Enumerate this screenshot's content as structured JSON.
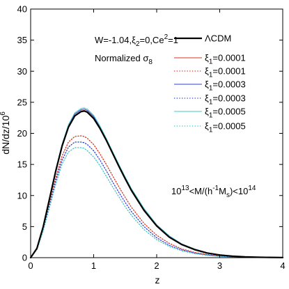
{
  "chart_data": {
    "type": "line",
    "xlabel": "z",
    "ylabel": "dN/dz/10",
    "ylabel_sup": "6",
    "xlim": [
      0,
      4
    ],
    "ylim": [
      0,
      40
    ],
    "xticks": [
      "0",
      "1",
      "2",
      "3",
      "4"
    ],
    "yticks": [
      "0",
      "5",
      "10",
      "15",
      "20",
      "25",
      "30",
      "35",
      "40"
    ],
    "grid": false,
    "legend_position": "top-right",
    "annotations": {
      "params_text": "W=-1.04,ξ",
      "params_sub": "2",
      "params_rest": "=0,Ce",
      "params_sup": "2",
      "params_end": "=1",
      "normalized_text": "Normalized σ",
      "normalized_sub": "8",
      "mass_range_a": "10",
      "mass_range_a_sup": "13",
      "mass_range_b": "<M/(h",
      "mass_range_b_sup": "-1",
      "mass_range_c": "M",
      "mass_range_c_sub": "s",
      "mass_range_d": ")<10",
      "mass_range_d_sup": "14"
    },
    "series": [
      {
        "name": "ΛCDM",
        "label_main": "ΛCDM",
        "label_sub": "",
        "label_value": "",
        "color": "#000000",
        "style": "solid",
        "width": 2.2,
        "x": [
          0,
          0.1,
          0.2,
          0.3,
          0.4,
          0.5,
          0.6,
          0.7,
          0.8,
          0.85,
          0.9,
          1.0,
          1.1,
          1.2,
          1.3,
          1.4,
          1.5,
          1.6,
          1.8,
          2.0,
          2.2,
          2.4,
          2.6,
          2.8,
          3.0,
          3.2,
          3.4,
          3.6,
          3.8,
          4.0
        ],
        "y": [
          0,
          1.5,
          5.0,
          9.5,
          14.0,
          18.0,
          21.0,
          22.8,
          23.5,
          23.6,
          23.4,
          22.4,
          20.8,
          18.9,
          16.8,
          14.7,
          12.7,
          10.8,
          7.6,
          5.1,
          3.3,
          2.1,
          1.3,
          0.75,
          0.43,
          0.24,
          0.13,
          0.07,
          0.04,
          0.02
        ]
      },
      {
        "name": "ξ1=0.0001 solid",
        "label_main": "ξ",
        "label_sub": "1",
        "label_value": "=0.0001",
        "color": "#e0301e",
        "style": "solid",
        "width": 1,
        "x": [
          0,
          0.1,
          0.2,
          0.3,
          0.4,
          0.5,
          0.6,
          0.7,
          0.8,
          0.85,
          0.9,
          1.0,
          1.1,
          1.2,
          1.3,
          1.4,
          1.5,
          1.6,
          1.8,
          2.0,
          2.2,
          2.4,
          2.6,
          2.8,
          3.0,
          3.2,
          3.4,
          3.6,
          3.8,
          4.0
        ],
        "y": [
          0,
          1.5,
          5.0,
          9.6,
          14.1,
          18.1,
          21.1,
          22.9,
          23.6,
          23.7,
          23.5,
          22.5,
          20.9,
          19.0,
          16.9,
          14.8,
          12.8,
          10.9,
          7.7,
          5.2,
          3.4,
          2.2,
          1.4,
          0.8,
          0.45,
          0.25,
          0.14,
          0.08,
          0.04,
          0.02
        ]
      },
      {
        "name": "ξ1=0.0001 dotted",
        "label_main": "ξ",
        "label_sub": "1",
        "label_value": "=0.0001",
        "color": "#e0301e",
        "style": "dotted",
        "width": 1.3,
        "x": [
          0,
          0.1,
          0.2,
          0.3,
          0.4,
          0.5,
          0.6,
          0.7,
          0.8,
          0.85,
          0.9,
          1.0,
          1.1,
          1.2,
          1.3,
          1.4,
          1.5,
          1.6,
          1.8,
          2.0,
          2.2,
          2.4,
          2.6,
          2.8,
          3.0,
          3.2,
          3.4,
          3.6,
          3.8,
          4.0
        ],
        "y": [
          0,
          1.4,
          4.6,
          8.7,
          12.9,
          16.4,
          18.6,
          19.5,
          19.6,
          19.5,
          19.2,
          18.2,
          16.7,
          15.0,
          13.2,
          11.4,
          9.7,
          8.1,
          5.5,
          3.6,
          2.3,
          1.4,
          0.85,
          0.5,
          0.28,
          0.15,
          0.08,
          0.04,
          0.02,
          0.01
        ]
      },
      {
        "name": "ξ1=0.0003 solid",
        "label_main": "ξ",
        "label_sub": "1",
        "label_value": "=0.0003",
        "color": "#2f3fd0",
        "style": "solid",
        "width": 1,
        "x": [
          0,
          0.1,
          0.2,
          0.3,
          0.4,
          0.5,
          0.6,
          0.7,
          0.8,
          0.85,
          0.9,
          1.0,
          1.1,
          1.2,
          1.3,
          1.4,
          1.5,
          1.6,
          1.8,
          2.0,
          2.2,
          2.4,
          2.6,
          2.8,
          3.0,
          3.2,
          3.4,
          3.6,
          3.8,
          4.0
        ],
        "y": [
          0,
          1.5,
          5.0,
          9.6,
          14.2,
          18.2,
          21.3,
          23.1,
          23.8,
          23.9,
          23.7,
          22.7,
          21.0,
          19.1,
          17.0,
          14.9,
          12.9,
          11.0,
          7.8,
          5.3,
          3.5,
          2.2,
          1.4,
          0.8,
          0.45,
          0.25,
          0.14,
          0.08,
          0.04,
          0.02
        ]
      },
      {
        "name": "ξ1=0.0003 dotted",
        "label_main": "ξ",
        "label_sub": "1",
        "label_value": "=0.0003",
        "color": "#2f3fd0",
        "style": "dotted",
        "width": 1.3,
        "x": [
          0,
          0.1,
          0.2,
          0.3,
          0.4,
          0.5,
          0.6,
          0.7,
          0.8,
          0.85,
          0.9,
          1.0,
          1.1,
          1.2,
          1.3,
          1.4,
          1.5,
          1.6,
          1.8,
          2.0,
          2.2,
          2.4,
          2.6,
          2.8,
          3.0,
          3.2,
          3.4,
          3.6,
          3.8,
          4.0
        ],
        "y": [
          0,
          1.4,
          4.5,
          8.4,
          12.4,
          15.7,
          17.8,
          18.6,
          18.6,
          18.5,
          18.2,
          17.2,
          15.7,
          14.0,
          12.2,
          10.5,
          8.9,
          7.4,
          5.0,
          3.2,
          2.0,
          1.25,
          0.75,
          0.43,
          0.24,
          0.13,
          0.07,
          0.04,
          0.02,
          0.01
        ]
      },
      {
        "name": "ξ1=0.0005 solid",
        "label_main": "ξ",
        "label_sub": "1",
        "label_value": "=0.0005",
        "color": "#40c8c8",
        "style": "solid",
        "width": 1,
        "x": [
          0,
          0.1,
          0.2,
          0.3,
          0.4,
          0.5,
          0.6,
          0.7,
          0.8,
          0.85,
          0.9,
          1.0,
          1.1,
          1.2,
          1.3,
          1.4,
          1.5,
          1.6,
          1.8,
          2.0,
          2.2,
          2.4,
          2.6,
          2.8,
          3.0,
          3.2,
          3.4,
          3.6,
          3.8,
          4.0
        ],
        "y": [
          0,
          1.5,
          5.1,
          9.7,
          14.3,
          18.3,
          21.4,
          23.3,
          24.0,
          24.1,
          23.9,
          22.9,
          21.2,
          19.2,
          17.1,
          15.0,
          13.0,
          11.1,
          7.9,
          5.3,
          3.5,
          2.2,
          1.4,
          0.8,
          0.45,
          0.25,
          0.14,
          0.08,
          0.04,
          0.02
        ]
      },
      {
        "name": "ξ1=0.0005 dotted",
        "label_main": "ξ",
        "label_sub": "1",
        "label_value": "=0.0005",
        "color": "#40c8c8",
        "style": "dotted",
        "width": 1.3,
        "x": [
          0,
          0.1,
          0.2,
          0.3,
          0.4,
          0.5,
          0.6,
          0.7,
          0.8,
          0.85,
          0.9,
          1.0,
          1.1,
          1.2,
          1.3,
          1.4,
          1.5,
          1.6,
          1.8,
          2.0,
          2.2,
          2.4,
          2.6,
          2.8,
          3.0,
          3.2,
          3.4,
          3.6,
          3.8,
          4.0
        ],
        "y": [
          0,
          1.3,
          4.3,
          8.1,
          11.9,
          15.1,
          17.0,
          17.7,
          17.7,
          17.6,
          17.2,
          16.2,
          14.8,
          13.1,
          11.4,
          9.8,
          8.2,
          6.8,
          4.5,
          2.9,
          1.8,
          1.1,
          0.65,
          0.37,
          0.2,
          0.11,
          0.06,
          0.03,
          0.02,
          0.01
        ]
      }
    ]
  }
}
